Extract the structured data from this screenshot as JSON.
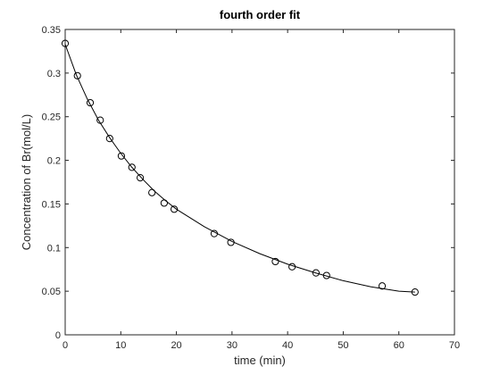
{
  "chart_data": {
    "type": "scatter",
    "title": "fourth order fit",
    "xlabel": "time (min)",
    "ylabel": "Concentration of Br(mol/L)",
    "xlim": [
      0,
      70
    ],
    "ylim": [
      0,
      0.35
    ],
    "xticks": [
      "0",
      "10",
      "20",
      "30",
      "40",
      "50",
      "60",
      "70"
    ],
    "yticks": [
      "0",
      "0.05",
      "0.1",
      "0.15",
      "0.2",
      "0.25",
      "0.3",
      "0.35"
    ],
    "grid": false,
    "series": [
      {
        "kind": "markers",
        "marker": "circle",
        "color": "#000000",
        "x": [
          0,
          2.2,
          4.5,
          6.3,
          8.0,
          10.1,
          12.0,
          13.5,
          15.6,
          17.8,
          19.6,
          26.8,
          29.8,
          37.8,
          40.8,
          45.1,
          47.0,
          57.0,
          62.9
        ],
        "y": [
          0.334,
          0.297,
          0.266,
          0.246,
          0.225,
          0.205,
          0.192,
          0.18,
          0.163,
          0.151,
          0.144,
          0.116,
          0.106,
          0.084,
          0.078,
          0.071,
          0.068,
          0.056,
          0.049
        ]
      },
      {
        "kind": "line",
        "color": "#000000",
        "x": [
          0,
          2,
          4,
          6,
          8,
          10,
          12,
          14,
          16,
          18,
          20,
          25,
          30,
          35,
          40,
          45,
          50,
          55,
          60,
          62.9
        ],
        "y": [
          0.333,
          0.298,
          0.27,
          0.246,
          0.226,
          0.208,
          0.192,
          0.178,
          0.165,
          0.154,
          0.144,
          0.124,
          0.107,
          0.093,
          0.081,
          0.071,
          0.062,
          0.055,
          0.05,
          0.049
        ]
      }
    ]
  }
}
